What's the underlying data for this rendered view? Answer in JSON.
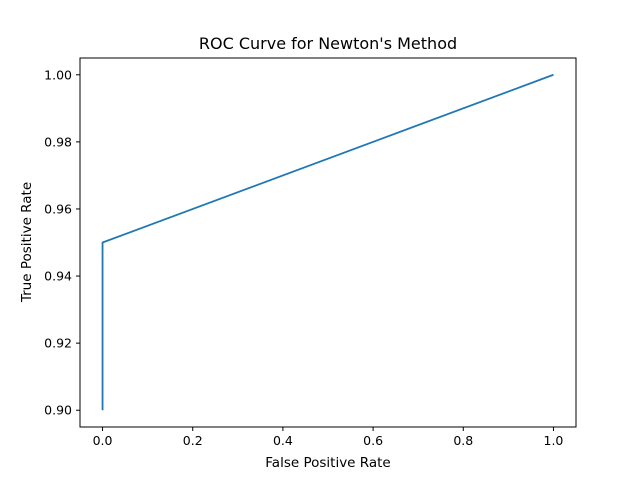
{
  "chart_data": {
    "type": "line",
    "title": "ROC Curve for Newton's Method",
    "xlabel": "False Positive Rate",
    "ylabel": "True Positive Rate",
    "xlim": [
      -0.05,
      1.05
    ],
    "ylim": [
      0.895,
      1.005
    ],
    "xticks": [
      0.0,
      0.2,
      0.4,
      0.6,
      0.8,
      1.0
    ],
    "xtick_labels": [
      "0.0",
      "0.2",
      "0.4",
      "0.6",
      "0.8",
      "1.0"
    ],
    "yticks": [
      0.9,
      0.92,
      0.94,
      0.96,
      0.98,
      1.0
    ],
    "ytick_labels": [
      "0.90",
      "0.92",
      "0.94",
      "0.96",
      "0.98",
      "1.00"
    ],
    "grid": false,
    "series": [
      {
        "color": "#1f77b4",
        "x": [
          0.0,
          0.0,
          1.0
        ],
        "y": [
          0.9,
          0.95,
          1.0
        ]
      }
    ]
  }
}
